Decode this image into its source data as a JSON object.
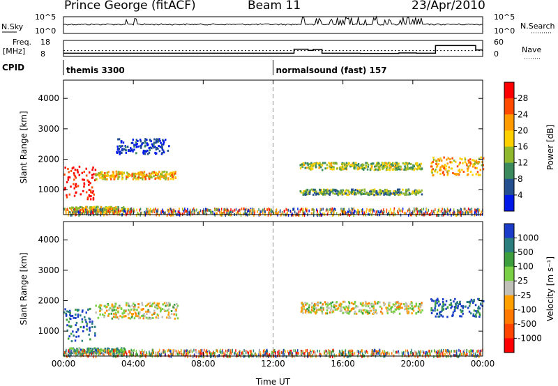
{
  "header": {
    "station": "Prince George (fitACF)",
    "beam": "Beam 11",
    "date": "23/Apr/2010"
  },
  "strip": {
    "nsky_label": "N.Sky",
    "nsky_ticks": [
      "10^5",
      "10^0"
    ],
    "nsearch_label": "N.Search",
    "nsearch_ticks": [
      "10^5",
      "10^0"
    ],
    "freq_label": "Freq.",
    "freq_unit": "[MHz]",
    "freq_ticks": [
      "18",
      "8"
    ],
    "nave_label": "Nave",
    "nave_ticks": [
      "60",
      "0"
    ],
    "cpid_label": "CPID",
    "cpid_modes": [
      {
        "text": "themis 3300",
        "start_hour": 0.0
      },
      {
        "text": "normalsound (fast) 157",
        "start_hour": 12.0
      }
    ],
    "freq_steps": [
      [
        0.0,
        10.0
      ],
      [
        13.2,
        12.5
      ],
      [
        14.0,
        11.8
      ],
      [
        14.3,
        12.4
      ],
      [
        14.8,
        10.0
      ],
      [
        17.0,
        9.9
      ],
      [
        19.2,
        10.2
      ],
      [
        20.2,
        10.0
      ],
      [
        21.3,
        14.8
      ],
      [
        23.6,
        12.0
      ],
      [
        24.0,
        12.0
      ]
    ],
    "nave_level": 22
  },
  "chart_data": [
    {
      "type": "heatmap",
      "panel": "power",
      "xlabel": "",
      "ylabel": "Slant Range [km]",
      "x_ticks": [
        "00:00",
        "04:00",
        "08:00",
        "12:00",
        "16:00",
        "20:00",
        "00:00"
      ],
      "xlim_hours": [
        0,
        24
      ],
      "y_ticks": [
        "4000",
        "3000",
        "2000",
        "1000"
      ],
      "ylim_km": [
        180,
        4600
      ],
      "colorbar_label": "Power [dB]",
      "colorbar_ticks": [
        "28",
        "24",
        "20",
        "16",
        "12",
        "8",
        "4"
      ],
      "colorbar_colors": [
        "#ff0000",
        "#ff4a00",
        "#ff9a00",
        "#ffd000",
        "#8fb82c",
        "#3a8a5e",
        "#245090",
        "#0018e8"
      ],
      "features": [
        {
          "from": 0.0,
          "to": 1.8,
          "range_km": 1250,
          "halfwidth": 550,
          "level": 0.95
        },
        {
          "from": 1.8,
          "to": 6.5,
          "range_km": 1500,
          "halfwidth": 130,
          "level": 0.6
        },
        {
          "from": 0.3,
          "to": 3.5,
          "range_km": 380,
          "halfwidth": 90,
          "level": 0.5
        },
        {
          "from": 3.0,
          "to": 6.0,
          "range_km": 2450,
          "halfwidth": 250,
          "level": 0.1
        },
        {
          "from": 13.5,
          "to": 20.5,
          "range_km": 1800,
          "halfwidth": 120,
          "level": 0.45
        },
        {
          "from": 13.5,
          "to": 20.5,
          "range_km": 950,
          "halfwidth": 90,
          "level": 0.35
        },
        {
          "from": 21.0,
          "to": 24.0,
          "range_km": 1800,
          "halfwidth": 300,
          "level": 0.65
        }
      ]
    },
    {
      "type": "heatmap",
      "panel": "velocity",
      "xlabel": "Time UT",
      "ylabel": "Slant Range [km]",
      "x_ticks": [
        "00:00",
        "04:00",
        "08:00",
        "12:00",
        "16:00",
        "20:00",
        "00:00"
      ],
      "xlim_hours": [
        0,
        24
      ],
      "y_ticks": [
        "4000",
        "3000",
        "2000",
        "1000"
      ],
      "ylim_km": [
        180,
        4600
      ],
      "colorbar_label": "Velocity [m s⁻¹]",
      "colorbar_ticks": [
        "1000",
        "500",
        "100",
        "25",
        "-25",
        "-100",
        "-500",
        "-1000"
      ],
      "colorbar_colors": [
        "#1a3cc8",
        "#2a7e7e",
        "#3c9e3c",
        "#7ad044",
        "#c0c0b8",
        "#ffa000",
        "#ff7800",
        "#ff4400",
        "#ff0000"
      ],
      "features": [
        {
          "from": 0.0,
          "to": 1.8,
          "range_km": 1250,
          "halfwidth": 550,
          "level": 0.88
        },
        {
          "from": 1.8,
          "to": 6.5,
          "range_km": 1700,
          "halfwidth": 260,
          "level": 0.5
        },
        {
          "from": 0.3,
          "to": 3.5,
          "range_km": 380,
          "halfwidth": 90,
          "level": 0.72
        },
        {
          "from": 13.5,
          "to": 20.5,
          "range_km": 1800,
          "halfwidth": 200,
          "level": 0.5
        },
        {
          "from": 21.0,
          "to": 24.0,
          "range_km": 1800,
          "halfwidth": 300,
          "level": 0.88
        }
      ]
    }
  ]
}
